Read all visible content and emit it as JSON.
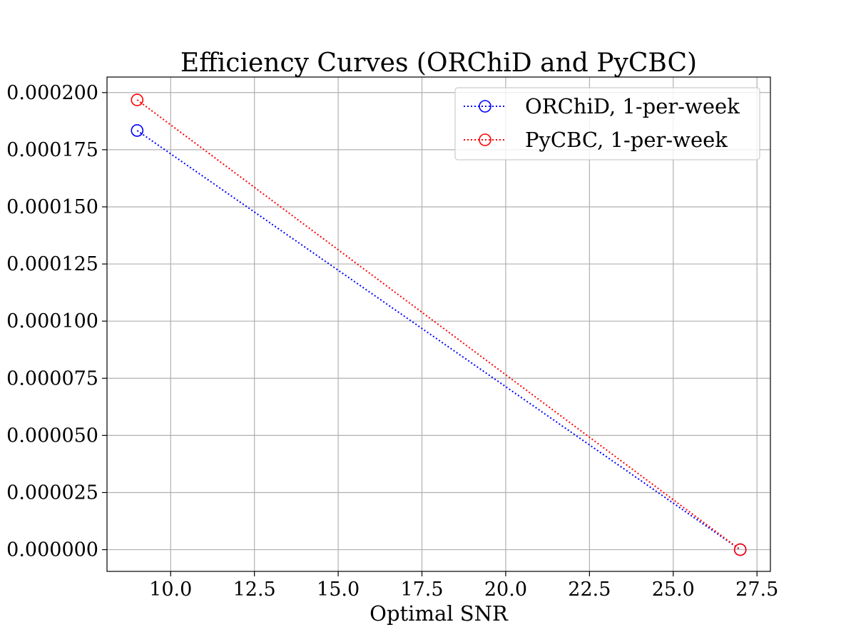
{
  "chart_data": {
    "type": "line",
    "title": "Efficiency Curves (ORChiD and PyCBC)",
    "xlabel": "Optimal SNR",
    "ylabel": "",
    "xlim": [
      8.1,
      27.9
    ],
    "ylim": [
      -9.5e-06,
      0.0002068
    ],
    "xticks": [
      10.0,
      12.5,
      15.0,
      17.5,
      20.0,
      22.5,
      25.0,
      27.5
    ],
    "xtick_labels": [
      "10.0",
      "12.5",
      "15.0",
      "17.5",
      "20.0",
      "22.5",
      "25.0",
      "27.5"
    ],
    "yticks": [
      0.0,
      2.5e-05,
      5e-05,
      7.5e-05,
      0.0001,
      0.000125,
      0.00015,
      0.000175,
      0.0002
    ],
    "ytick_labels": [
      "0.000000",
      "0.000025",
      "0.000050",
      "0.000075",
      "0.000100",
      "0.000125",
      "0.000150",
      "0.000175",
      "0.000200"
    ],
    "grid": true,
    "legend_position": "top-right",
    "series": [
      {
        "name": "ORChiD, 1-per-week",
        "color": "#0000ff",
        "line_style": "dotted",
        "marker": "open-circle",
        "x": [
          9.0,
          27.0
        ],
        "y": [
          0.0001834,
          0.0
        ]
      },
      {
        "name": "PyCBC, 1-per-week",
        "color": "#ff0000",
        "line_style": "dotted",
        "marker": "open-circle",
        "x": [
          9.0,
          27.0
        ],
        "y": [
          0.0001968,
          0.0
        ]
      }
    ]
  }
}
